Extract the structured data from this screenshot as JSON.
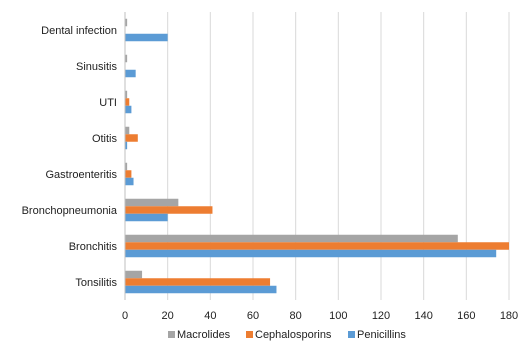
{
  "chart_data": {
    "type": "bar",
    "orientation": "horizontal",
    "categories": [
      "Tonsilitis",
      "Bronchitis",
      "Bronchopneumonia",
      "Gastroenteritis",
      "Otitis",
      "UTI",
      "Sinusitis",
      "Dental infection"
    ],
    "series": [
      {
        "name": "Macrolides",
        "color": "#a5a5a5",
        "values": [
          8,
          156,
          25,
          1,
          2,
          1,
          1,
          1
        ]
      },
      {
        "name": "Cephalosporins",
        "color": "#ed7d31",
        "values": [
          68,
          180,
          41,
          3,
          6,
          2,
          0,
          0
        ]
      },
      {
        "name": "Penicillins",
        "color": "#5b9bd5",
        "values": [
          71,
          174,
          20,
          4,
          1,
          3,
          5,
          20
        ]
      }
    ],
    "xlim": [
      0,
      180
    ],
    "xticks": [
      0,
      20,
      40,
      60,
      80,
      100,
      120,
      140,
      160,
      180
    ],
    "grid": true,
    "legend_position": "bottom"
  }
}
